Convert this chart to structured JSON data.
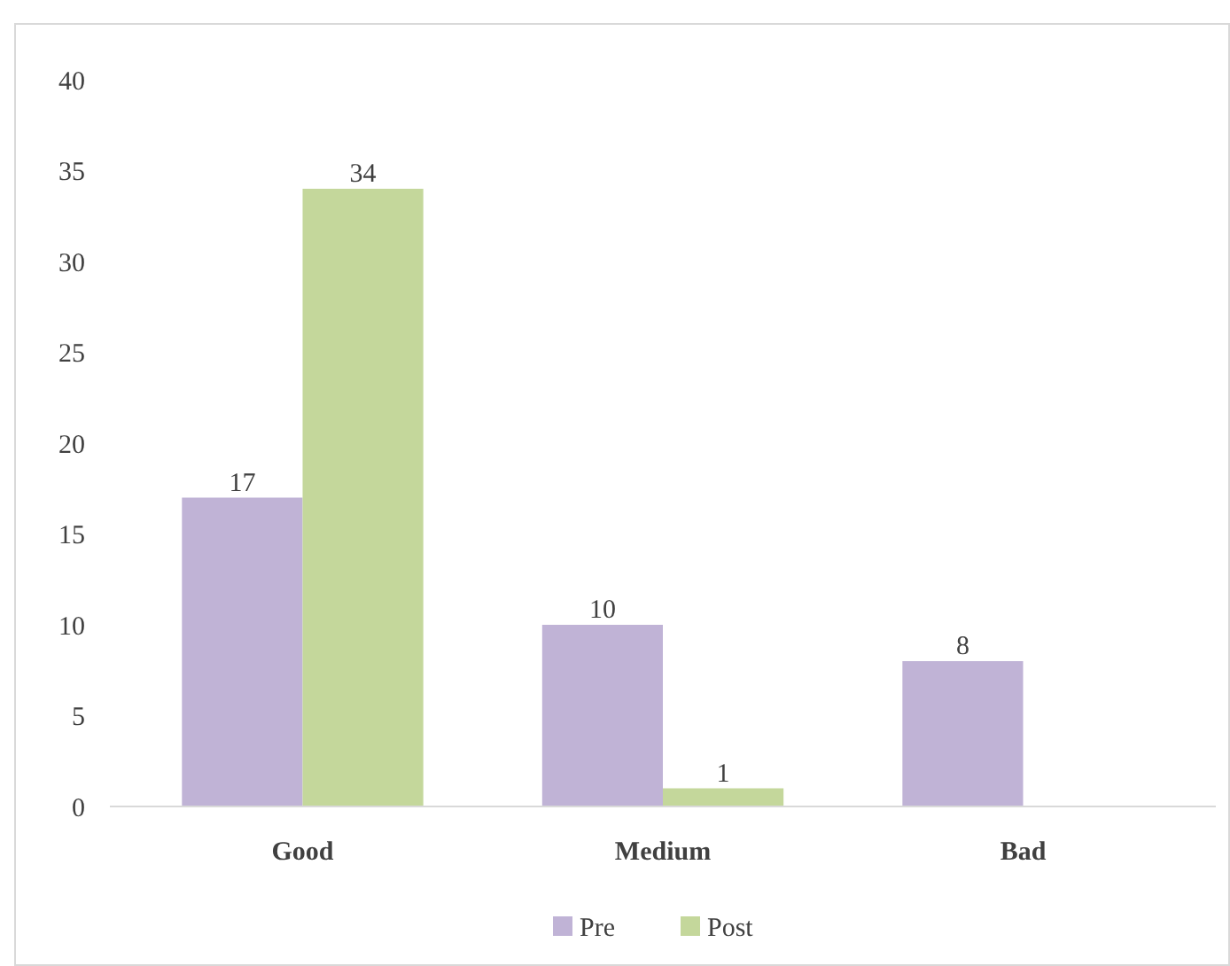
{
  "chart_data": {
    "type": "bar",
    "categories": [
      "Good",
      "Medium",
      "Bad"
    ],
    "series": [
      {
        "name": "Pre",
        "color": "#c0b3d6",
        "values": [
          17,
          10,
          8
        ]
      },
      {
        "name": "Post",
        "color": "#c4d79b",
        "values": [
          34,
          1,
          null
        ]
      }
    ],
    "ylim": [
      0,
      40
    ],
    "yticks": [
      0,
      5,
      10,
      15,
      20,
      25,
      30,
      35,
      40
    ],
    "grid": false,
    "legend": "bottom",
    "data_labels": true
  }
}
